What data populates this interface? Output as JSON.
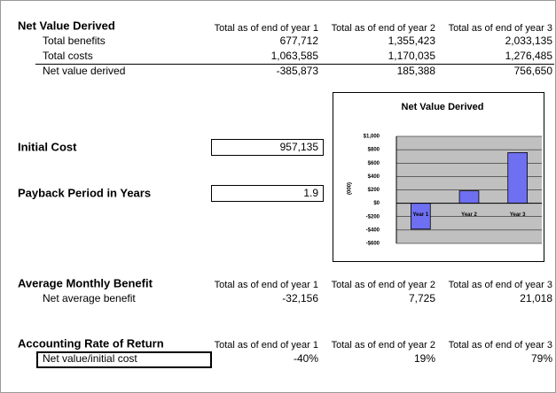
{
  "net_value": {
    "title": "Net Value Derived",
    "headers": [
      "Total as of end of year 1",
      "Total as of end of year 2",
      "Total as of end of year 3"
    ],
    "rows": [
      {
        "label": "Total benefits",
        "values": [
          "677,712",
          "1,355,423",
          "2,033,135"
        ]
      },
      {
        "label": "Total costs",
        "values": [
          "1,063,585",
          "1,170,035",
          "1,276,485"
        ]
      },
      {
        "label": "Net value derived",
        "values": [
          "-385,873",
          "185,388",
          "756,650"
        ]
      }
    ]
  },
  "initial_cost": {
    "label": "Initial Cost",
    "value": "957,135"
  },
  "payback": {
    "label": "Payback Period in Years",
    "value": "1.9"
  },
  "monthly": {
    "title": "Average Monthly Benefit",
    "headers": [
      "Total as of end of year 1",
      "Total as of end of year 2",
      "Total as of end of year 3"
    ],
    "rows": [
      {
        "label": "Net average benefit",
        "values": [
          "-32,156",
          "7,725",
          "21,018"
        ]
      }
    ]
  },
  "arr": {
    "title": "Accounting Rate of Return",
    "headers": [
      "Total as of end of year 1",
      "Total as of end of year 2",
      "Total as of end of year 3"
    ],
    "rows": [
      {
        "label": "Net value/initial cost",
        "values": [
          "-40%",
          "19%",
          "79%"
        ]
      }
    ]
  },
  "chart_data": {
    "type": "bar",
    "title": "Net Value Derived",
    "ylabel": "(000)",
    "categories": [
      "Year 1",
      "Year 2",
      "Year 3"
    ],
    "values": [
      -385.873,
      185.388,
      756.65
    ],
    "color": "#6f6ff2",
    "ylim": [
      -600,
      1000
    ],
    "yticks": [
      {
        "value": 1000,
        "label": "$1,000"
      },
      {
        "value": 800,
        "label": "$800"
      },
      {
        "value": 600,
        "label": "$600"
      },
      {
        "value": 400,
        "label": "$400"
      },
      {
        "value": 200,
        "label": "$200"
      },
      {
        "value": 0,
        "label": "$0"
      },
      {
        "value": -200,
        "label": "-$200"
      },
      {
        "value": -400,
        "label": "-$400"
      },
      {
        "value": -600,
        "label": "-$600"
      }
    ],
    "grid": true
  }
}
